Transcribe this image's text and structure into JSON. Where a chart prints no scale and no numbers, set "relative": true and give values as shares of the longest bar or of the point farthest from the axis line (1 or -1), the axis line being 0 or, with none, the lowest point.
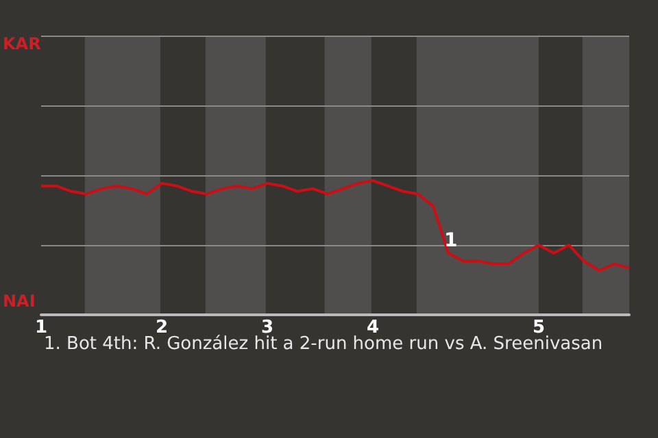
{
  "chart_data": {
    "type": "line",
    "relative": true,
    "categories": [
      "1",
      null,
      null,
      null,
      null,
      null,
      null,
      null,
      "2",
      null,
      null,
      null,
      null,
      null,
      null,
      "3",
      null,
      null,
      null,
      null,
      null,
      null,
      "4",
      null,
      null,
      null,
      null,
      null,
      null,
      null,
      null,
      null,
      null,
      "5",
      null,
      null,
      null,
      null,
      null,
      null
    ],
    "series": [
      {
        "color": "#cc0f14",
        "values": [
          0.96,
          0.96,
          0.92,
          0.9,
          0.94,
          0.96,
          0.94,
          0.9,
          0.98,
          0.96,
          0.92,
          0.9,
          0.94,
          0.96,
          0.94,
          0.98,
          0.96,
          0.92,
          0.94,
          0.9,
          0.94,
          0.98,
          1,
          0.96,
          0.92,
          0.9,
          0.81,
          0.46,
          0.4,
          0.4,
          0.38,
          0.38,
          0.46,
          0.52,
          0.46,
          0.52,
          0.4,
          0.33,
          0.38,
          0.35
        ]
      }
    ],
    "marker": "none",
    "ref_lines": [
      {
        "axis": "y",
        "value": 0.52,
        "color": "#8a8a88"
      },
      {
        "axis": "y",
        "value": 1.04,
        "color": "#8a8a88"
      },
      {
        "axis": "y",
        "value": 1.56,
        "color": "#8a8a88"
      },
      {
        "axis": "y",
        "value": 2.08,
        "color": "#8a8a88"
      }
    ],
    "annotations": [
      "KAR",
      "NAI",
      "1",
      "1. Bot 4th: R. González hit a 2-run home run vs A. Sreenivasan"
    ]
  }
}
